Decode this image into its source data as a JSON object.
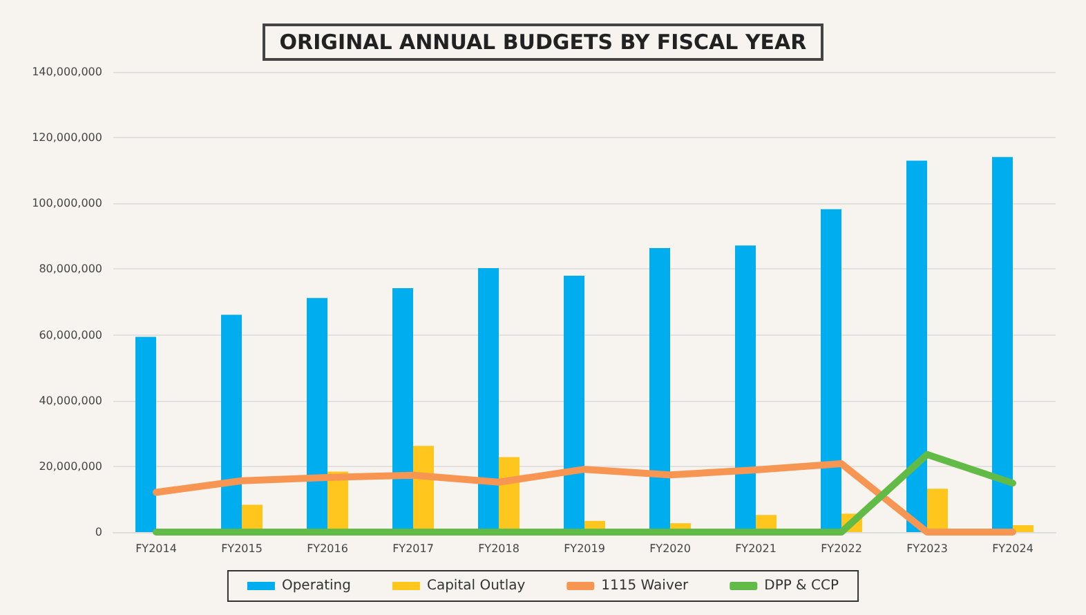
{
  "chart_data": {
    "type": "bar",
    "title": "ORIGINAL ANNUAL BUDGETS BY FISCAL YEAR",
    "categories": [
      "FY2014",
      "FY2015",
      "FY2016",
      "FY2017",
      "FY2018",
      "FY2019",
      "FY2020",
      "FY2021",
      "FY2022",
      "FY2023",
      "FY2024"
    ],
    "series": [
      {
        "name": "Operating",
        "color": "#00aeef",
        "values": [
          59400000,
          66100000,
          71200000,
          74200000,
          80300000,
          78000000,
          86400000,
          87200000,
          98200000,
          113000000,
          114100000
        ]
      },
      {
        "name": "Capital Outlay",
        "color": "#ffc61e",
        "values": [
          0,
          8300000,
          18400000,
          26200000,
          22800000,
          3400000,
          2700000,
          5200000,
          5600000,
          13200000,
          2100000
        ]
      },
      {
        "name": "1115 Waiver",
        "type": "line",
        "color": "#f79552",
        "values": [
          12100000,
          15600000,
          16600000,
          17300000,
          15200000,
          19100000,
          17400000,
          18900000,
          20800000,
          0,
          0
        ]
      },
      {
        "name": "DPP & CCP",
        "type": "line",
        "color": "#62bb46",
        "values": [
          0,
          0,
          0,
          0,
          0,
          0,
          0,
          0,
          0,
          23600000,
          14900000
        ]
      }
    ],
    "ylim": [
      0,
      140000000
    ],
    "yticks": [
      0,
      {
        "value": 20000000,
        "label": "20,000,000"
      },
      {
        "value": 40000000,
        "label": "40,000,000"
      },
      {
        "value": 60000000,
        "label": "60,000,000"
      },
      {
        "value": 80000000,
        "label": "80,000,000"
      },
      {
        "value": 100000000,
        "label": "100,000,000"
      },
      {
        "value": 120000000,
        "label": "120,000,000"
      },
      {
        "value": 140000000,
        "label": "140,000,000"
      }
    ],
    "grid": "y",
    "legend": "bottom",
    "marker": "none"
  }
}
